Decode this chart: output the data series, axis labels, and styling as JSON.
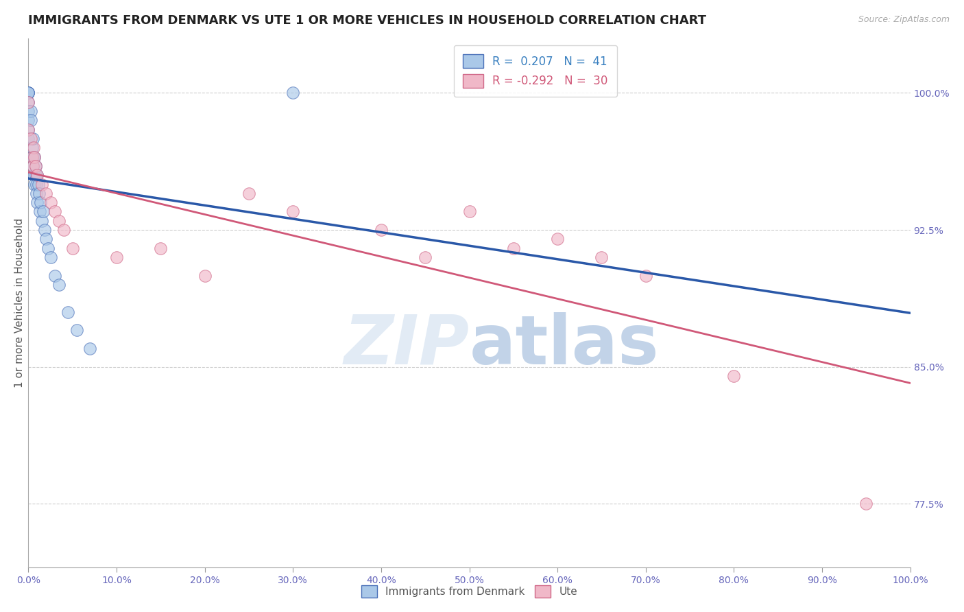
{
  "title": "IMMIGRANTS FROM DENMARK VS UTE 1 OR MORE VEHICLES IN HOUSEHOLD CORRELATION CHART",
  "source_text": "Source: ZipAtlas.com",
  "ylabel": "1 or more Vehicles in Household",
  "xlim": [
    0.0,
    100.0
  ],
  "ylim": [
    74.0,
    103.0
  ],
  "yticks": [
    77.5,
    85.0,
    92.5,
    100.0
  ],
  "xticks": [
    0.0,
    10.0,
    20.0,
    30.0,
    40.0,
    50.0,
    60.0,
    70.0,
    80.0,
    90.0,
    100.0
  ],
  "series_blue": {
    "label": "Immigrants from Denmark",
    "R": 0.207,
    "N": 41,
    "color": "#aac8e8",
    "edge_color": "#4a70b8",
    "line_color": "#2a58a8",
    "x": [
      0.0,
      0.0,
      0.0,
      0.0,
      0.0,
      0.0,
      0.0,
      0.0,
      0.0,
      0.3,
      0.3,
      0.4,
      0.4,
      0.5,
      0.5,
      0.6,
      0.6,
      0.7,
      0.7,
      0.8,
      0.8,
      0.9,
      0.9,
      1.0,
      1.0,
      1.1,
      1.2,
      1.3,
      1.4,
      1.5,
      1.7,
      1.8,
      2.0,
      2.2,
      2.5,
      3.0,
      3.5,
      4.5,
      5.5,
      7.0,
      30.0
    ],
    "y": [
      100.0,
      100.0,
      100.0,
      100.0,
      99.5,
      99.0,
      98.5,
      98.0,
      97.5,
      99.0,
      98.5,
      97.0,
      96.5,
      97.5,
      96.0,
      96.5,
      95.5,
      96.5,
      95.0,
      96.0,
      95.5,
      95.0,
      94.5,
      95.5,
      94.0,
      95.0,
      94.5,
      93.5,
      94.0,
      93.0,
      93.5,
      92.5,
      92.0,
      91.5,
      91.0,
      90.0,
      89.5,
      88.0,
      87.0,
      86.0,
      100.0
    ]
  },
  "series_pink": {
    "label": "Ute",
    "R": -0.292,
    "N": 30,
    "color": "#f0b8c8",
    "edge_color": "#d06888",
    "line_color": "#d05878",
    "x": [
      0.0,
      0.0,
      0.3,
      0.4,
      0.5,
      0.6,
      0.7,
      0.8,
      1.0,
      1.5,
      2.0,
      2.5,
      3.0,
      3.5,
      4.0,
      5.0,
      10.0,
      15.0,
      20.0,
      25.0,
      30.0,
      40.0,
      45.0,
      50.0,
      55.0,
      60.0,
      65.0,
      70.0,
      80.0,
      95.0
    ],
    "y": [
      99.5,
      98.0,
      97.5,
      96.5,
      96.0,
      97.0,
      96.5,
      96.0,
      95.5,
      95.0,
      94.5,
      94.0,
      93.5,
      93.0,
      92.5,
      91.5,
      91.0,
      91.5,
      90.0,
      94.5,
      93.5,
      92.5,
      91.0,
      93.5,
      91.5,
      92.0,
      91.0,
      90.0,
      84.5,
      77.5
    ]
  },
  "background_color": "#ffffff",
  "grid_color": "#cccccc",
  "title_fontsize": 13,
  "axis_label_fontsize": 11,
  "tick_fontsize": 10,
  "tick_color": "#6666bb",
  "legend_color_blue": "#3a80c0",
  "legend_color_pink": "#d05878",
  "watermark_color": "#d8e4f0",
  "watermark_text_color": "#c0cce0"
}
